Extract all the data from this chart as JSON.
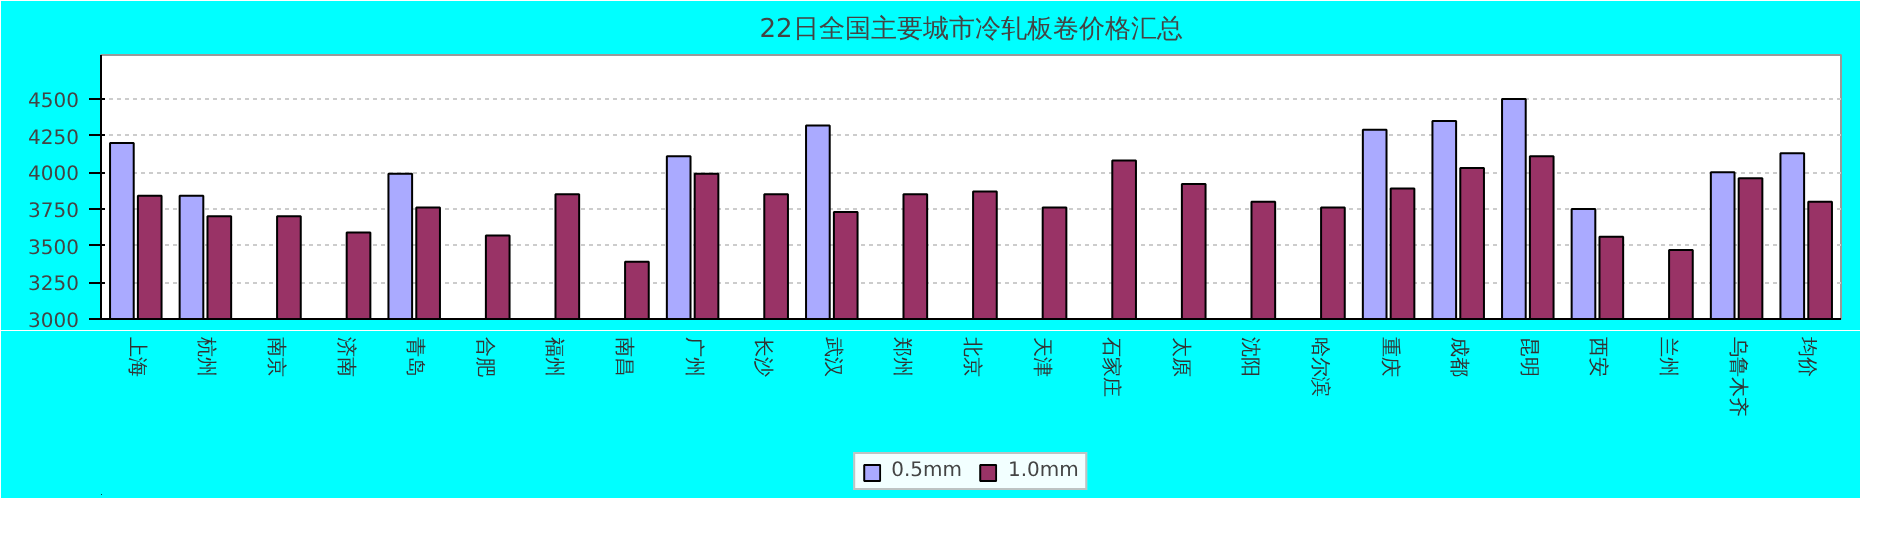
{
  "chart_data": {
    "type": "bar",
    "title": "22日全国主要城市冷轧板卷价格汇总",
    "categories": [
      "上海",
      "杭州",
      "南京",
      "济南",
      "青岛",
      "合肥",
      "福州",
      "南昌",
      "广州",
      "长沙",
      "武汉",
      "郑州",
      "北京",
      "天津",
      "石家庄",
      "太原",
      "沈阳",
      "哈尔滨",
      "重庆",
      "成都",
      "昆明",
      "西安",
      "兰州",
      "乌鲁木齐",
      "均价"
    ],
    "series": [
      {
        "name": "0.5mm",
        "color": "#aaaaff",
        "values": [
          4200,
          3840,
          null,
          null,
          3990,
          null,
          null,
          null,
          4110,
          null,
          4320,
          null,
          null,
          null,
          null,
          null,
          null,
          null,
          4290,
          4350,
          4500,
          3750,
          null,
          4000,
          4130
        ]
      },
      {
        "name": "1.0mm",
        "color": "#993366",
        "values": [
          3840,
          3700,
          3700,
          3590,
          3760,
          3570,
          3850,
          3390,
          3990,
          3850,
          3730,
          3850,
          3870,
          3760,
          4080,
          3920,
          3800,
          3760,
          3890,
          4030,
          4110,
          3560,
          3470,
          3960,
          3800
        ]
      }
    ],
    "ylim": [
      3000,
      4800
    ],
    "yticks": [
      3000,
      3250,
      3500,
      3750,
      4000,
      4250,
      4500
    ],
    "grid": "y",
    "legend": "bottom"
  }
}
